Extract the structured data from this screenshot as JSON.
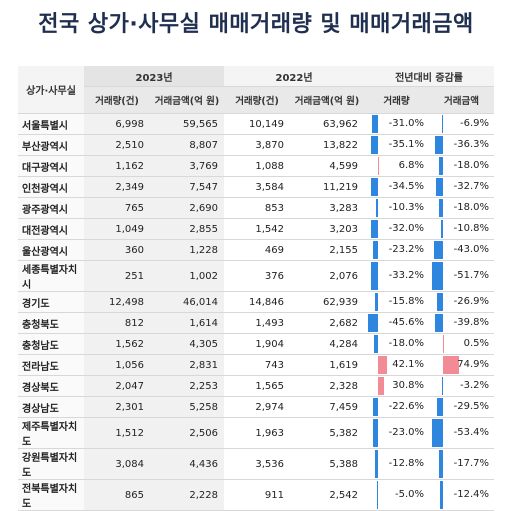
{
  "title": "전국 상가·사무실 매매거래량 및 매매거래금액",
  "chart_data": {
    "type": "table",
    "region_header": "상가·사무실",
    "group_headers": [
      "2023년",
      "2022년",
      "전년대비 증감률"
    ],
    "column_headers": [
      "거래량(건)",
      "거래금액(억 원)",
      "거래량(건)",
      "거래금액(억 원)",
      "거래량",
      "거래금액"
    ],
    "colors": {
      "negative": "#2e86de",
      "positive": "#f28b95"
    },
    "rows": [
      {
        "region": "서울특별시",
        "v2023": "6,998",
        "a2023": "59,565",
        "v2022": "10,149",
        "a2022": "63,962",
        "vol": -31.0,
        "vol_label": "-31.0%",
        "amt": -6.9,
        "amt_label": "-6.9%"
      },
      {
        "region": "부산광역시",
        "v2023": "2,510",
        "a2023": "8,807",
        "v2022": "3,870",
        "a2022": "13,822",
        "vol": -35.1,
        "vol_label": "-35.1%",
        "amt": -36.3,
        "amt_label": "-36.3%"
      },
      {
        "region": "대구광역시",
        "v2023": "1,162",
        "a2023": "3,769",
        "v2022": "1,088",
        "a2022": "4,599",
        "vol": 6.8,
        "vol_label": "6.8%",
        "amt": -18.0,
        "amt_label": "-18.0%"
      },
      {
        "region": "인천광역시",
        "v2023": "2,349",
        "a2023": "7,547",
        "v2022": "3,584",
        "a2022": "11,219",
        "vol": -34.5,
        "vol_label": "-34.5%",
        "amt": -32.7,
        "amt_label": "-32.7%"
      },
      {
        "region": "광주광역시",
        "v2023": "765",
        "a2023": "2,690",
        "v2022": "853",
        "a2022": "3,283",
        "vol": -10.3,
        "vol_label": "-10.3%",
        "amt": -18.0,
        "amt_label": "-18.0%"
      },
      {
        "region": "대전광역시",
        "v2023": "1,049",
        "a2023": "2,855",
        "v2022": "1,542",
        "a2022": "3,203",
        "vol": -32.0,
        "vol_label": "-32.0%",
        "amt": -10.8,
        "amt_label": "-10.8%"
      },
      {
        "region": "울산광역시",
        "v2023": "360",
        "a2023": "1,228",
        "v2022": "469",
        "a2022": "2,155",
        "vol": -23.2,
        "vol_label": "-23.2%",
        "amt": -43.0,
        "amt_label": "-43.0%"
      },
      {
        "region": "세종특별자치시",
        "v2023": "251",
        "a2023": "1,002",
        "v2022": "376",
        "a2022": "2,076",
        "vol": -33.2,
        "vol_label": "-33.2%",
        "amt": -51.7,
        "amt_label": "-51.7%"
      },
      {
        "region": "경기도",
        "v2023": "12,498",
        "a2023": "46,014",
        "v2022": "14,846",
        "a2022": "62,939",
        "vol": -15.8,
        "vol_label": "-15.8%",
        "amt": -26.9,
        "amt_label": "-26.9%"
      },
      {
        "region": "충청북도",
        "v2023": "812",
        "a2023": "1,614",
        "v2022": "1,493",
        "a2022": "2,682",
        "vol": -45.6,
        "vol_label": "-45.6%",
        "amt": -39.8,
        "amt_label": "-39.8%"
      },
      {
        "region": "충청남도",
        "v2023": "1,562",
        "a2023": "4,305",
        "v2022": "1,904",
        "a2022": "4,284",
        "vol": -18.0,
        "vol_label": "-18.0%",
        "amt": 0.5,
        "amt_label": "0.5%"
      },
      {
        "region": "전라남도",
        "v2023": "1,056",
        "a2023": "2,831",
        "v2022": "743",
        "a2022": "1,619",
        "vol": 42.1,
        "vol_label": "42.1%",
        "amt": 74.9,
        "amt_label": "74.9%"
      },
      {
        "region": "경상북도",
        "v2023": "2,047",
        "a2023": "2,253",
        "v2022": "1,565",
        "a2022": "2,328",
        "vol": 30.8,
        "vol_label": "30.8%",
        "amt": -3.2,
        "amt_label": "-3.2%"
      },
      {
        "region": "경상남도",
        "v2023": "2,301",
        "a2023": "5,258",
        "v2022": "2,974",
        "a2022": "7,459",
        "vol": -22.6,
        "vol_label": "-22.6%",
        "amt": -29.5,
        "amt_label": "-29.5%"
      },
      {
        "region": "제주특별자치도",
        "v2023": "1,512",
        "a2023": "2,506",
        "v2022": "1,963",
        "a2022": "5,382",
        "vol": -23.0,
        "vol_label": "-23.0%",
        "amt": -53.4,
        "amt_label": "-53.4%"
      },
      {
        "region": "강원특별자치도",
        "v2023": "3,084",
        "a2023": "4,436",
        "v2022": "3,536",
        "a2022": "5,388",
        "vol": -12.8,
        "vol_label": "-12.8%",
        "amt": -17.7,
        "amt_label": "-17.7%"
      },
      {
        "region": "전북특별자치도",
        "v2023": "865",
        "a2023": "2,228",
        "v2022": "911",
        "a2022": "2,542",
        "vol": -5.0,
        "vol_label": "-5.0%",
        "amt": -12.4,
        "amt_label": "-12.4%"
      }
    ]
  }
}
